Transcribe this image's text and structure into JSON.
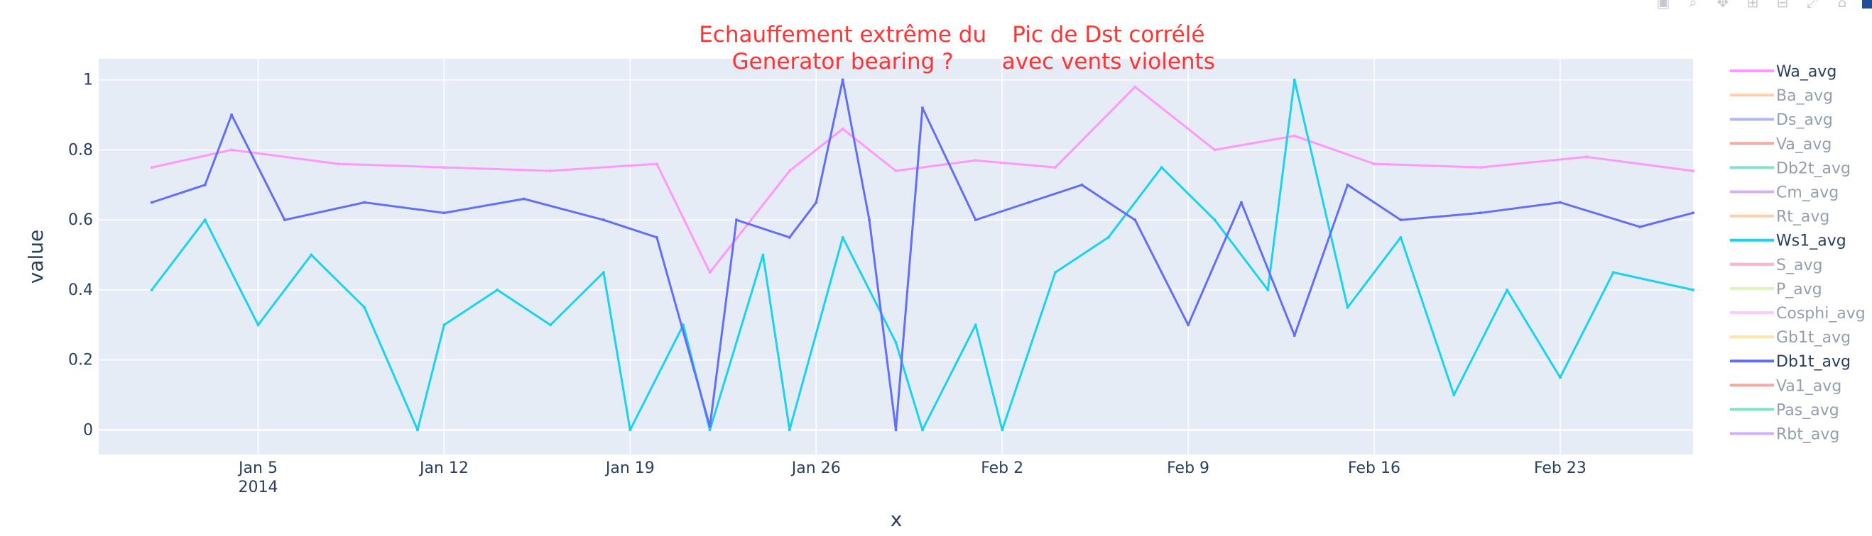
{
  "colors": {
    "plot_bg": "#E5ECF6",
    "grid": "#ffffff",
    "text": "#2a3f5f",
    "annotation": "#ff3333"
  },
  "modebar": {
    "buttons": [
      "camera-icon",
      "zoom-icon",
      "pan-icon",
      "zoom-in-icon",
      "zoom-out-icon",
      "autoscale-icon",
      "reset-icon"
    ]
  },
  "chart_data": {
    "type": "line",
    "xlabel": "x",
    "ylabel": "value",
    "x_range": [
      "2013-12-30",
      "2014-02-28"
    ],
    "ylim": [
      -0.07,
      1.06
    ],
    "x_ticks": [
      {
        "date": "2014-01-05",
        "label": "Jan 5",
        "sublabel": "2014"
      },
      {
        "date": "2014-01-12",
        "label": "Jan 12",
        "sublabel": ""
      },
      {
        "date": "2014-01-19",
        "label": "Jan 19",
        "sublabel": ""
      },
      {
        "date": "2014-01-26",
        "label": "Jan 26",
        "sublabel": ""
      },
      {
        "date": "2014-02-02",
        "label": "Feb 2",
        "sublabel": ""
      },
      {
        "date": "2014-02-09",
        "label": "Feb 9",
        "sublabel": ""
      },
      {
        "date": "2014-02-16",
        "label": "Feb 16",
        "sublabel": ""
      },
      {
        "date": "2014-02-23",
        "label": "Feb 23",
        "sublabel": ""
      }
    ],
    "y_ticks": [
      {
        "value": 0,
        "label": "0"
      },
      {
        "value": 0.2,
        "label": "0.2"
      },
      {
        "value": 0.4,
        "label": "0.4"
      },
      {
        "value": 0.6,
        "label": "0.6"
      },
      {
        "value": 0.8,
        "label": "0.8"
      },
      {
        "value": 1,
        "label": "1"
      }
    ],
    "grid": true,
    "legend_position": "right",
    "annotations": [
      {
        "lines": [
          "Echauffement extrême du",
          "Generator bearing ?"
        ],
        "date": "2014-01-27",
        "y": 1.1
      },
      {
        "lines": [
          "Pic de Dst corrélé",
          "avec vents violents"
        ],
        "date": "2014-02-06",
        "y": 1.1
      }
    ],
    "series": [
      {
        "name": "Wa_avg",
        "color": "#ff97ff",
        "visible": true,
        "x": [
          "2014-01-01",
          "2014-01-04",
          "2014-01-08",
          "2014-01-12",
          "2014-01-16",
          "2014-01-20",
          "2014-01-22",
          "2014-01-25",
          "2014-01-27",
          "2014-01-29",
          "2014-02-01",
          "2014-02-04",
          "2014-02-07",
          "2014-02-10",
          "2014-02-13",
          "2014-02-16",
          "2014-02-20",
          "2014-02-24",
          "2014-02-28"
        ],
        "y": [
          0.75,
          0.8,
          0.76,
          0.75,
          0.74,
          0.76,
          0.45,
          0.74,
          0.86,
          0.74,
          0.77,
          0.75,
          0.98,
          0.8,
          0.84,
          0.76,
          0.75,
          0.78,
          0.74
        ]
      },
      {
        "name": "Ba_avg",
        "color": "#FFA15A",
        "visible": false
      },
      {
        "name": "Ds_avg",
        "color": "#636EFA",
        "visible": false
      },
      {
        "name": "Va_avg",
        "color": "#EF553B",
        "visible": false
      },
      {
        "name": "Db2t_avg",
        "color": "#00CC96",
        "visible": false
      },
      {
        "name": "Cm_avg",
        "color": "#AB63FA",
        "visible": false
      },
      {
        "name": "Rt_avg",
        "color": "#FFA15A",
        "visible": false
      },
      {
        "name": "Ws1_avg",
        "color": "#19D3F3",
        "visible": true,
        "x": [
          "2014-01-01",
          "2014-01-03",
          "2014-01-05",
          "2014-01-07",
          "2014-01-09",
          "2014-01-11",
          "2014-01-12",
          "2014-01-14",
          "2014-01-16",
          "2014-01-18",
          "2014-01-19",
          "2014-01-21",
          "2014-01-22",
          "2014-01-24",
          "2014-01-25",
          "2014-01-27",
          "2014-01-29",
          "2014-01-30",
          "2014-02-01",
          "2014-02-02",
          "2014-02-04",
          "2014-02-06",
          "2014-02-08",
          "2014-02-10",
          "2014-02-12",
          "2014-02-13",
          "2014-02-15",
          "2014-02-17",
          "2014-02-19",
          "2014-02-21",
          "2014-02-23",
          "2014-02-25",
          "2014-02-28"
        ],
        "y": [
          0.4,
          0.6,
          0.3,
          0.5,
          0.35,
          0.0,
          0.3,
          0.4,
          0.3,
          0.45,
          0.0,
          0.3,
          0.0,
          0.5,
          0.0,
          0.55,
          0.25,
          0.0,
          0.3,
          0.0,
          0.45,
          0.55,
          0.75,
          0.6,
          0.4,
          1.0,
          0.35,
          0.55,
          0.1,
          0.4,
          0.15,
          0.45,
          0.4
        ]
      },
      {
        "name": "S_avg",
        "color": "#FF6692",
        "visible": false
      },
      {
        "name": "P_avg",
        "color": "#B6E880",
        "visible": false
      },
      {
        "name": "Cosphi_avg",
        "color": "#FF97FF",
        "visible": false
      },
      {
        "name": "Gb1t_avg",
        "color": "#FECB52",
        "visible": false
      },
      {
        "name": "Db1t_avg",
        "color": "#636EFA",
        "visible": true,
        "x": [
          "2014-01-01",
          "2014-01-03",
          "2014-01-04",
          "2014-01-06",
          "2014-01-09",
          "2014-01-12",
          "2014-01-15",
          "2014-01-18",
          "2014-01-20",
          "2014-01-22",
          "2014-01-23",
          "2014-01-25",
          "2014-01-26",
          "2014-01-27",
          "2014-01-28",
          "2014-01-29",
          "2014-01-30",
          "2014-02-01",
          "2014-02-03",
          "2014-02-05",
          "2014-02-07",
          "2014-02-09",
          "2014-02-11",
          "2014-02-13",
          "2014-02-15",
          "2014-02-17",
          "2014-02-20",
          "2014-02-23",
          "2014-02-26",
          "2014-02-28"
        ],
        "y": [
          0.65,
          0.7,
          0.9,
          0.6,
          0.65,
          0.62,
          0.66,
          0.6,
          0.55,
          0.01,
          0.6,
          0.55,
          0.65,
          1.0,
          0.6,
          0.0,
          0.92,
          0.6,
          0.65,
          0.7,
          0.6,
          0.3,
          0.65,
          0.27,
          0.7,
          0.6,
          0.62,
          0.65,
          0.58,
          0.62
        ]
      },
      {
        "name": "Va1_avg",
        "color": "#EF553B",
        "visible": false
      },
      {
        "name": "Pas_avg",
        "color": "#00CC96",
        "visible": false
      },
      {
        "name": "Rbt_avg",
        "color": "#AB63FA",
        "visible": false
      }
    ]
  }
}
